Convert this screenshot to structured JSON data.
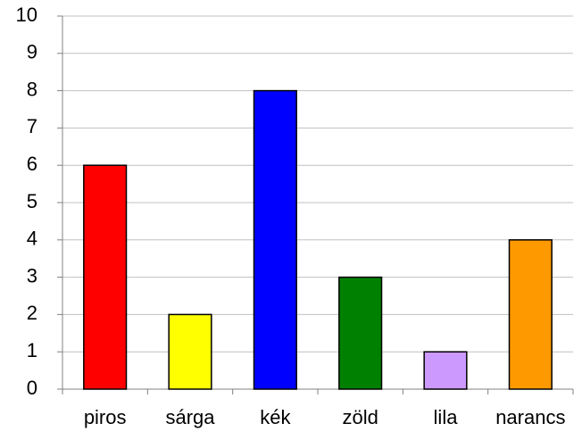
{
  "chart_data": {
    "type": "bar",
    "categories": [
      "piros",
      "sárga",
      "kék",
      "zöld",
      "lila",
      "narancs"
    ],
    "values": [
      6,
      2,
      8,
      3,
      1,
      4
    ],
    "colors": [
      "#ff0000",
      "#ffff00",
      "#0000ff",
      "#008000",
      "#cc99ff",
      "#ff9900"
    ],
    "ylim": [
      0,
      10
    ],
    "yticks": [
      0,
      1,
      2,
      3,
      4,
      5,
      6,
      7,
      8,
      9,
      10
    ],
    "grid": true
  }
}
